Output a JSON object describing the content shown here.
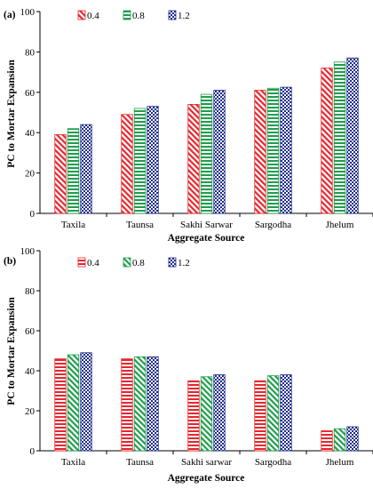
{
  "chart_data": [
    {
      "type": "bar",
      "panel_label": "(a)",
      "xlabel": "Aggregate Source",
      "ylabel": "PC to Mortar Expansion",
      "ylim": [
        0,
        100
      ],
      "yticks": [
        "0",
        "20",
        "40",
        "60",
        "80",
        "100"
      ],
      "categories": [
        "Taxila",
        "Taunsa",
        "Sakhi Sarwar",
        "Sargodha",
        "Jhelum"
      ],
      "legend_placement": "top-left",
      "grid": false,
      "series": [
        {
          "name": "0.4",
          "color": "#e8252d",
          "pattern": "diagonal",
          "values": [
            39,
            49,
            54,
            61,
            72
          ]
        },
        {
          "name": "0.8",
          "color": "#1e9e4a",
          "pattern": "horizontal",
          "values": [
            42,
            52,
            59,
            62,
            75
          ]
        },
        {
          "name": "1.2",
          "color": "#1a2a8c",
          "pattern": "checker",
          "values": [
            44,
            53,
            61,
            62.5,
            77
          ]
        }
      ]
    },
    {
      "type": "bar",
      "panel_label": "(b)",
      "xlabel": "Aggregate Source",
      "ylabel": "PC to Mortar Expansion",
      "ylim": [
        0,
        100
      ],
      "yticks": [
        "0",
        "20",
        "40",
        "60",
        "80",
        "100"
      ],
      "categories": [
        "Taxila",
        "Taunsa",
        "Sakhi sarwar",
        "Sargodha",
        "Jhelum"
      ],
      "legend_placement": "top-left",
      "grid": false,
      "series": [
        {
          "name": "0.4",
          "color": "#e8252d",
          "pattern": "horizontal",
          "values": [
            46,
            46,
            35,
            35,
            10
          ]
        },
        {
          "name": "0.8",
          "color": "#1e9e4a",
          "pattern": "diagonal",
          "values": [
            48,
            47,
            37,
            37.5,
            11
          ]
        },
        {
          "name": "1.2",
          "color": "#1a2a8c",
          "pattern": "checker",
          "values": [
            49,
            47,
            38,
            38,
            12
          ]
        }
      ]
    }
  ]
}
